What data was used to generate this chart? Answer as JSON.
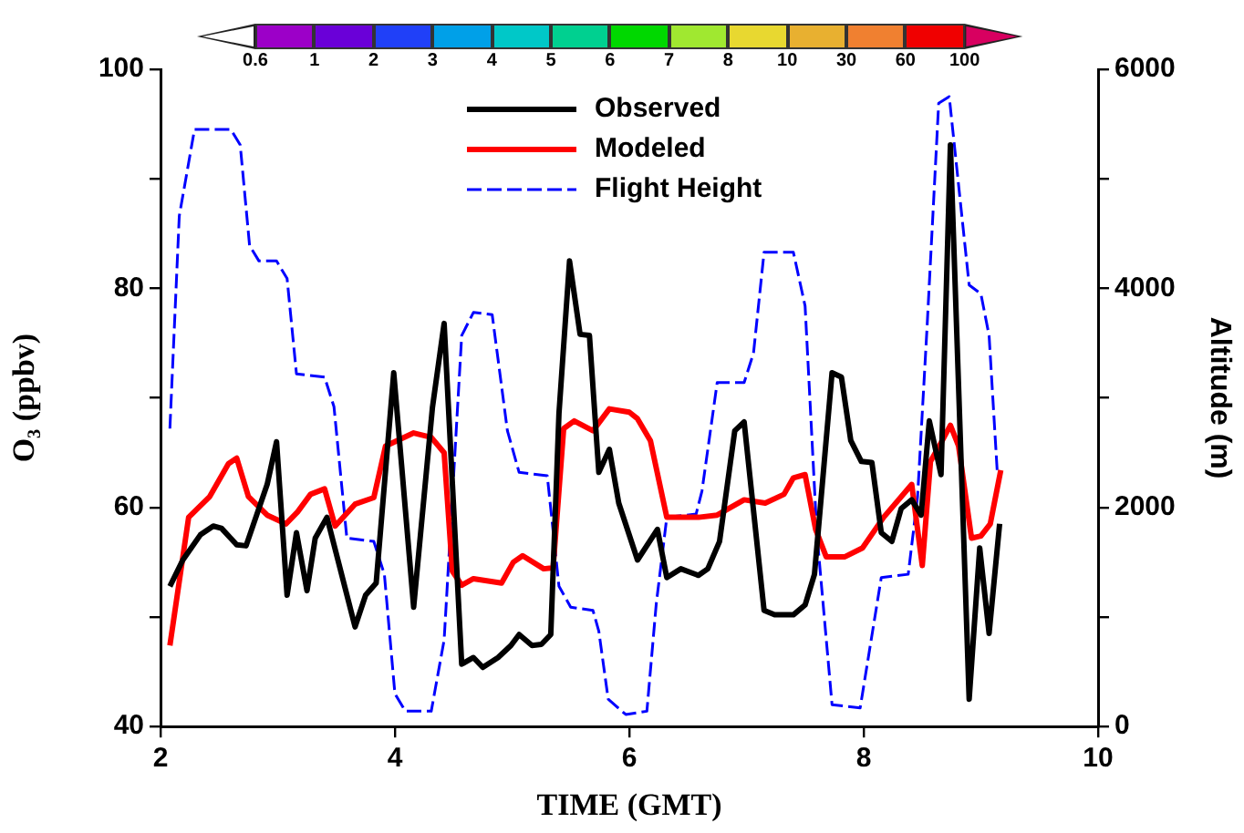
{
  "chart_data": {
    "type": "line",
    "xlabel": "TIME (GMT)",
    "ylabel": "O₃ (ppbv)",
    "y2label": "Altitude (m)",
    "xlim": [
      2,
      10
    ],
    "xticks": [
      2,
      4,
      6,
      8,
      10
    ],
    "ylim": [
      40,
      100
    ],
    "yticks": [
      40,
      {
        "value": 50,
        "label": null
      },
      60,
      {
        "value": 70,
        "label": null
      },
      80,
      {
        "value": 90,
        "label": null
      },
      100
    ],
    "y2lim": [
      0,
      6000
    ],
    "y2ticks": [
      0,
      {
        "value": 1000,
        "label": null
      },
      2000,
      {
        "value": 3000,
        "label": null
      },
      4000,
      {
        "value": 5000,
        "label": null
      },
      6000
    ],
    "legend": "top",
    "grid": false,
    "marker": "none",
    "annotations": [
      "0.6",
      "1",
      "2",
      "3",
      "4",
      "5",
      "6",
      "7",
      "8",
      "10",
      "30",
      "60",
      "100"
    ],
    "colors": [
      "#ffffff",
      "#9c00c8",
      "#6a00d8",
      "#2040f8",
      "#00a0e8",
      "#00c8c8",
      "#00d090",
      "#00d800",
      "#a0e830",
      "#e8d830",
      "#e8b030",
      "#f08030",
      "#f00000",
      "#d80060"
    ],
    "series": [
      {
        "name": "Observed",
        "color": "#000000",
        "line_style": "solid",
        "x": [
          2.08,
          2.19,
          2.34,
          2.45,
          2.52,
          2.65,
          2.73,
          2.91,
          2.99,
          3.08,
          3.16,
          3.25,
          3.32,
          3.42,
          3.66,
          3.75,
          3.84,
          3.99,
          4.16,
          4.32,
          4.42,
          4.57,
          4.67,
          4.75,
          4.88,
          4.99,
          5.06,
          5.17,
          5.25,
          5.33,
          5.4,
          5.49,
          5.58,
          5.66,
          5.74,
          5.83,
          5.91,
          6.07,
          6.24,
          6.32,
          6.44,
          6.59,
          6.67,
          6.77,
          6.9,
          6.98,
          7.15,
          7.24,
          7.4,
          7.5,
          7.58,
          7.73,
          7.81,
          7.89,
          7.98,
          8.07,
          8.15,
          8.24,
          8.32,
          8.41,
          8.49,
          8.56,
          8.66,
          8.74,
          8.9,
          8.99,
          9.07,
          9.16
        ],
        "values": [
          52.8,
          55.2,
          57.5,
          58.3,
          58.1,
          56.6,
          56.5,
          62.1,
          66,
          52,
          57.7,
          52.4,
          57.2,
          59.1,
          49.1,
          52,
          53.1,
          72.3,
          50.9,
          69.1,
          76.8,
          45.7,
          46.3,
          45.4,
          46.3,
          47.4,
          48.4,
          47.4,
          47.5,
          48.4,
          68.6,
          82.5,
          75.8,
          75.7,
          63.2,
          65.3,
          60.4,
          55.2,
          58,
          53.6,
          54.4,
          53.8,
          54.4,
          56.9,
          67,
          67.8,
          50.6,
          50.2,
          50.2,
          51.1,
          53.9,
          72.3,
          71.9,
          66.1,
          64.2,
          64.1,
          57.7,
          56.9,
          59.9,
          60.7,
          59.3,
          67.9,
          63,
          93.1,
          42.5,
          56.3,
          48.5,
          58.5
        ]
      },
      {
        "name": "Modeled",
        "color": "#ff0000",
        "line_style": "solid",
        "x": [
          2.08,
          2.24,
          2.42,
          2.58,
          2.65,
          2.75,
          2.91,
          3.07,
          3.17,
          3.28,
          3.4,
          3.49,
          3.66,
          3.82,
          3.92,
          4.16,
          4.31,
          4.42,
          4.49,
          4.57,
          4.67,
          4.91,
          5.01,
          5.09,
          5.27,
          5.35,
          5.44,
          5.53,
          5.69,
          5.83,
          6.0,
          6.07,
          6.18,
          6.32,
          6.59,
          6.75,
          6.98,
          7.16,
          7.32,
          7.4,
          7.5,
          7.59,
          7.68,
          7.84,
          7.99,
          8.17,
          8.41,
          8.5,
          8.57,
          8.66,
          8.74,
          8.81,
          8.92,
          9.0,
          9.08,
          9.17
        ],
        "values": [
          47.4,
          59.1,
          61,
          64,
          64.5,
          61,
          59.3,
          58.5,
          59.6,
          61.2,
          61.7,
          58.3,
          60.3,
          60.9,
          65.6,
          66.8,
          66.4,
          65,
          54.2,
          52.9,
          53.5,
          53.1,
          55,
          55.6,
          54.4,
          54.5,
          67.2,
          67.9,
          67,
          69,
          68.7,
          68.1,
          66.1,
          59.1,
          59.1,
          59.3,
          60.7,
          60.4,
          61.2,
          62.7,
          63,
          58,
          55.5,
          55.5,
          56.3,
          59.1,
          62.1,
          54.7,
          64.2,
          65.9,
          67.5,
          65.6,
          57.2,
          57.4,
          58.5,
          63.4
        ]
      },
      {
        "name": "Flight Height",
        "color": "#0000ff",
        "line_style": "dashed",
        "axis": "y2",
        "x": [
          2.08,
          2.16,
          2.29,
          2.6,
          2.68,
          2.76,
          2.84,
          2.99,
          3.08,
          3.16,
          3.4,
          3.48,
          3.59,
          3.82,
          3.91,
          4.0,
          4.09,
          4.31,
          4.42,
          4.57,
          4.67,
          4.83,
          4.96,
          5.06,
          5.3,
          5.4,
          5.5,
          5.69,
          5.74,
          5.82,
          5.97,
          6.15,
          6.23,
          6.32,
          6.57,
          6.62,
          6.75,
          6.98,
          7.06,
          7.15,
          7.4,
          7.5,
          7.6,
          7.73,
          7.97,
          8.15,
          8.38,
          8.46,
          8.54,
          8.64,
          8.73,
          8.9,
          9.0,
          9.07,
          9.14
        ],
        "values": [
          2720,
          4660,
          5450,
          5450,
          5310,
          4390,
          4250,
          4250,
          4090,
          3220,
          3190,
          2920,
          1720,
          1690,
          1390,
          300,
          140,
          140,
          790,
          3570,
          3780,
          3760,
          2700,
          2320,
          2290,
          1280,
          1090,
          1060,
          870,
          250,
          110,
          140,
          1120,
          1910,
          1940,
          2150,
          3140,
          3140,
          3410,
          4330,
          4330,
          3840,
          1770,
          200,
          170,
          1360,
          1390,
          2100,
          3630,
          5690,
          5750,
          4030,
          3950,
          3570,
          2320
        ]
      }
    ]
  }
}
